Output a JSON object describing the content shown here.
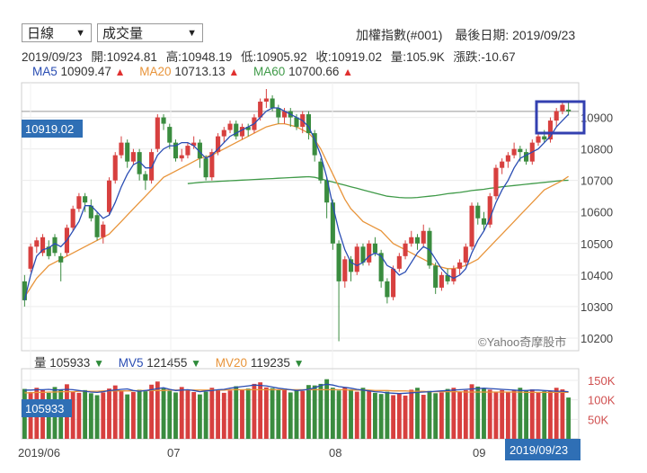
{
  "controls": {
    "period": "日線",
    "indicator": "成交量"
  },
  "header": {
    "index_name": "加權指數(#001)",
    "last_date_label": "最後日期:",
    "last_date": "2019/09/23"
  },
  "quote": {
    "date": "2019/09/23",
    "open_label": "開:",
    "open": "10924.81",
    "high_label": "高:",
    "high": "10948.19",
    "low_label": "低:",
    "low": "10905.92",
    "close_label": "收:",
    "close": "10919.02",
    "volume_label": "量:",
    "volume": "105.9K",
    "change_label": "漲跌:",
    "change": "-10.67"
  },
  "ma_legend": {
    "ma5_label": "MA5",
    "ma5": "10909.47",
    "ma20_label": "MA20",
    "ma20": "10713.13",
    "ma60_label": "MA60",
    "ma60": "10700.66"
  },
  "vol_legend": {
    "vol_label": "量",
    "vol": "105933",
    "mv5_label": "MV5",
    "mv5": "121455",
    "mv20_label": "MV20",
    "mv20": "119235"
  },
  "badges": {
    "price": "10919.02",
    "volume": "105933",
    "cursor_date": "2019/09/23"
  },
  "watermark": "©Yahoo奇摩股市",
  "colors": {
    "up": "#d7403f",
    "down": "#3a8c3f",
    "ma5": "#2a4db3",
    "ma20": "#e8943a",
    "ma60": "#3f9a48",
    "badge": "#2f6fb5",
    "highlight": "#3340b0"
  },
  "chart_data": {
    "type": "candlestick",
    "x_ticks": [
      "2019/06",
      "07",
      "08",
      "09"
    ],
    "price_axis": {
      "ticks": [
        10200,
        10300,
        10400,
        10500,
        10600,
        10700,
        10800,
        10900
      ],
      "ylim": [
        10160,
        11010
      ]
    },
    "volume_axis": {
      "ticks": [
        "50K",
        "100K",
        "150K"
      ],
      "tick_values": [
        50,
        100,
        150
      ],
      "ylim": [
        0,
        180
      ]
    },
    "candles": [
      [
        10380,
        10320,
        10400,
        10300
      ],
      [
        10420,
        10490,
        10500,
        10410
      ],
      [
        10490,
        10510,
        10520,
        10470
      ],
      [
        10470,
        10520,
        10530,
        10460
      ],
      [
        10490,
        10460,
        10510,
        10450
      ],
      [
        10520,
        10470,
        10530,
        10460
      ],
      [
        10460,
        10440,
        10470,
        10380
      ],
      [
        10470,
        10550,
        10560,
        10460
      ],
      [
        10550,
        10610,
        10620,
        10540
      ],
      [
        10610,
        10650,
        10660,
        10600
      ],
      [
        10650,
        10630,
        10660,
        10600
      ],
      [
        10620,
        10580,
        10640,
        10570
      ],
      [
        10590,
        10520,
        10600,
        10510
      ],
      [
        10520,
        10560,
        10570,
        10500
      ],
      [
        10600,
        10700,
        10710,
        10590
      ],
      [
        10700,
        10780,
        10790,
        10690
      ],
      [
        10780,
        10820,
        10840,
        10770
      ],
      [
        10820,
        10760,
        10830,
        10740
      ],
      [
        10760,
        10790,
        10800,
        10750
      ],
      [
        10790,
        10720,
        10800,
        10700
      ],
      [
        10720,
        10700,
        10730,
        10670
      ],
      [
        10700,
        10790,
        10800,
        10690
      ],
      [
        10800,
        10900,
        10910,
        10790
      ],
      [
        10900,
        10880,
        10910,
        10860
      ],
      [
        10870,
        10820,
        10880,
        10800
      ],
      [
        10820,
        10770,
        10830,
        10760
      ],
      [
        10770,
        10780,
        10800,
        10760
      ],
      [
        10780,
        10810,
        10820,
        10770
      ],
      [
        10810,
        10820,
        10840,
        10800
      ],
      [
        10820,
        10770,
        10830,
        10740
      ],
      [
        10770,
        10710,
        10780,
        10700
      ],
      [
        10710,
        10790,
        10800,
        10700
      ],
      [
        10790,
        10840,
        10850,
        10780
      ],
      [
        10840,
        10860,
        10870,
        10820
      ],
      [
        10860,
        10880,
        10890,
        10850
      ],
      [
        10880,
        10840,
        10890,
        10830
      ],
      [
        10840,
        10870,
        10880,
        10830
      ],
      [
        10870,
        10860,
        10880,
        10840
      ],
      [
        10860,
        10900,
        10910,
        10850
      ],
      [
        10900,
        10950,
        10960,
        10890
      ],
      [
        10950,
        10960,
        10990,
        10930
      ],
      [
        10960,
        10930,
        10970,
        10920
      ],
      [
        10930,
        10900,
        10940,
        10880
      ],
      [
        10900,
        10920,
        10930,
        10880
      ],
      [
        10920,
        10900,
        10930,
        10870
      ],
      [
        10900,
        10870,
        10910,
        10860
      ],
      [
        10870,
        10910,
        10920,
        10850
      ],
      [
        10910,
        10850,
        10920,
        10830
      ],
      [
        10850,
        10780,
        10860,
        10760
      ],
      [
        10760,
        10700,
        10770,
        10690
      ],
      [
        10700,
        10630,
        10710,
        10580
      ],
      [
        10630,
        10500,
        10640,
        10480
      ],
      [
        10500,
        10380,
        10510,
        10190
      ],
      [
        10380,
        10450,
        10460,
        10360
      ],
      [
        10450,
        10410,
        10460,
        10380
      ],
      [
        10410,
        10490,
        10500,
        10400
      ],
      [
        10490,
        10440,
        10500,
        10430
      ],
      [
        10440,
        10500,
        10510,
        10430
      ],
      [
        10500,
        10470,
        10520,
        10460
      ],
      [
        10470,
        10380,
        10480,
        10360
      ],
      [
        10380,
        10330,
        10390,
        10310
      ],
      [
        10330,
        10420,
        10430,
        10320
      ],
      [
        10420,
        10460,
        10470,
        10410
      ],
      [
        10460,
        10500,
        10510,
        10450
      ],
      [
        10500,
        10520,
        10540,
        10490
      ],
      [
        10520,
        10500,
        10530,
        10480
      ],
      [
        10500,
        10540,
        10560,
        10490
      ],
      [
        10540,
        10430,
        10550,
        10420
      ],
      [
        10430,
        10360,
        10440,
        10340
      ],
      [
        10360,
        10400,
        10410,
        10350
      ],
      [
        10400,
        10380,
        10420,
        10370
      ],
      [
        10380,
        10420,
        10430,
        10370
      ],
      [
        10420,
        10440,
        10450,
        10400
      ],
      [
        10440,
        10490,
        10500,
        10430
      ],
      [
        10490,
        10620,
        10630,
        10480
      ],
      [
        10620,
        10580,
        10630,
        10560
      ],
      [
        10580,
        10560,
        10600,
        10540
      ],
      [
        10560,
        10650,
        10660,
        10550
      ],
      [
        10650,
        10740,
        10750,
        10640
      ],
      [
        10740,
        10760,
        10770,
        10720
      ],
      [
        10760,
        10780,
        10790,
        10740
      ],
      [
        10780,
        10800,
        10820,
        10770
      ],
      [
        10800,
        10790,
        10810,
        10760
      ],
      [
        10790,
        10760,
        10800,
        10750
      ],
      [
        10760,
        10820,
        10830,
        10750
      ],
      [
        10820,
        10840,
        10850,
        10810
      ],
      [
        10840,
        10830,
        10860,
        10820
      ],
      [
        10830,
        10890,
        10900,
        10820
      ],
      [
        10890,
        10920,
        10930,
        10870
      ],
      [
        10920,
        10940,
        10950,
        10910
      ],
      [
        10924.81,
        10919.02,
        10948.19,
        10905.92
      ]
    ],
    "volumes": [
      128,
      120,
      131,
      125,
      118,
      133,
      127,
      140,
      122,
      118,
      125,
      117,
      112,
      119,
      129,
      137,
      123,
      114,
      120,
      126,
      122,
      139,
      147,
      129,
      123,
      119,
      133,
      127,
      120,
      114,
      121,
      131,
      126,
      118,
      124,
      135,
      127,
      129,
      141,
      145,
      132,
      130,
      126,
      129,
      119,
      126,
      123,
      138,
      137,
      141,
      153,
      131,
      124,
      133,
      127,
      121,
      131,
      125,
      118,
      115,
      121,
      112,
      117,
      111,
      126,
      131,
      113,
      123,
      117,
      119,
      128,
      131,
      120,
      125,
      140,
      134,
      129,
      126,
      119,
      125,
      119,
      124,
      131,
      125,
      127,
      118,
      122,
      123,
      131,
      127,
      106
    ],
    "ma5": [
      10320,
      10400,
      10460,
      10480,
      10486,
      10500,
      10490,
      10510,
      10540,
      10570,
      10620,
      10620,
      10600,
      10580,
      10590,
      10630,
      10680,
      10720,
      10750,
      10760,
      10740,
      10740,
      10780,
      10800,
      10810,
      10810,
      10820,
      10820,
      10810,
      10790,
      10770,
      10780,
      10800,
      10820,
      10840,
      10850,
      10860,
      10870,
      10880,
      10900,
      10920,
      10930,
      10930,
      10920,
      10910,
      10900,
      10890,
      10870,
      10830,
      10780,
      10710,
      10620,
      10540,
      10480,
      10440,
      10430,
      10440,
      10460,
      10470,
      10460,
      10430,
      10420,
      10400,
      10410,
      10440,
      10470,
      10490,
      10480,
      10450,
      10420,
      10400,
      10390,
      10400,
      10420,
      10470,
      10510,
      10540,
      10580,
      10630,
      10670,
      10700,
      10740,
      10770,
      10780,
      10790,
      10800,
      10820,
      10840,
      10870,
      10890,
      10909.47
    ],
    "ma20": [
      10330,
      10360,
      10390,
      10410,
      10430,
      10440,
      10450,
      10460,
      10470,
      10480,
      10490,
      10500,
      10510,
      10520,
      10530,
      10550,
      10570,
      10590,
      10610,
      10630,
      10650,
      10670,
      10690,
      10710,
      10720,
      10730,
      10740,
      10750,
      10760,
      10770,
      10775,
      10780,
      10790,
      10800,
      10810,
      10820,
      10830,
      10840,
      10850,
      10860,
      10870,
      10875,
      10880,
      10880,
      10875,
      10870,
      10860,
      10850,
      10830,
      10800,
      10760,
      10720,
      10680,
      10640,
      10610,
      10590,
      10570,
      10560,
      10550,
      10540,
      10520,
      10500,
      10490,
      10480,
      10470,
      10460,
      10450,
      10440,
      10430,
      10425,
      10420,
      10420,
      10425,
      10430,
      10440,
      10450,
      10470,
      10490,
      10510,
      10530,
      10550,
      10570,
      10590,
      10610,
      10630,
      10650,
      10670,
      10680,
      10690,
      10700,
      10713.13
    ],
    "ma60": [
      10690,
      10692,
      10694,
      10695,
      10696,
      10697,
      10698,
      10699,
      10700,
      10701,
      10702,
      10703,
      10704,
      10705,
      10706,
      10707,
      10708,
      10709,
      10710,
      10711,
      10712,
      10710,
      10705,
      10700,
      10695,
      10690,
      10685,
      10680,
      10675,
      10670,
      10665,
      10660,
      10655,
      10650,
      10648,
      10646,
      10645,
      10645,
      10646,
      10648,
      10650,
      10652,
      10655,
      10658,
      10660,
      10662,
      10665,
      10668,
      10670,
      10672,
      10675,
      10677,
      10680,
      10682,
      10684,
      10686,
      10688,
      10690,
      10692,
      10694,
      10696,
      10698,
      10700,
      10700.66
    ],
    "ma60_start_index": 27,
    "mv5": [
      125,
      125,
      126,
      126,
      127,
      125,
      126,
      127,
      126,
      124,
      122,
      120,
      119,
      121,
      124,
      125,
      127,
      128,
      124,
      122,
      124,
      126,
      129,
      131,
      127,
      124,
      125,
      126,
      124,
      121,
      123,
      124,
      126,
      127,
      130,
      132,
      134,
      136,
      138,
      137,
      136,
      133,
      130,
      128,
      126,
      124,
      125,
      127,
      131,
      137,
      140,
      138,
      134,
      132,
      130,
      127,
      125,
      123,
      121,
      120,
      118,
      117,
      116,
      117,
      118,
      119,
      120,
      121,
      122,
      123,
      124,
      125,
      126,
      127,
      128,
      129,
      130,
      129,
      128,
      127,
      126,
      125,
      124,
      124,
      125,
      125,
      124,
      123,
      122,
      122,
      121
    ],
    "mv20": [
      118,
      118,
      119,
      119,
      120,
      120,
      121,
      121,
      121,
      122,
      122,
      122,
      122,
      123,
      123,
      123,
      123,
      123,
      123,
      124,
      124,
      124,
      124,
      124,
      125,
      125,
      125,
      125,
      125,
      125,
      125,
      125,
      125,
      125,
      126,
      126,
      126,
      126,
      126,
      126,
      126,
      126,
      126,
      126,
      126,
      126,
      126,
      126,
      126,
      126,
      126,
      126,
      126,
      126,
      125,
      125,
      125,
      125,
      124,
      124,
      124,
      123,
      123,
      123,
      122,
      122,
      122,
      121,
      121,
      121,
      121,
      121,
      121,
      120,
      120,
      120,
      120,
      120,
      120,
      120,
      120,
      120,
      120,
      119,
      119,
      119,
      119,
      119,
      119,
      119,
      119
    ]
  }
}
